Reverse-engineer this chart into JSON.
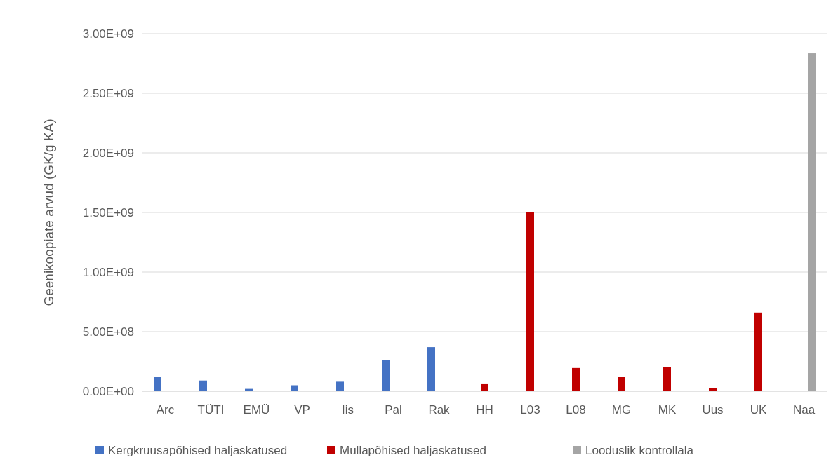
{
  "chart_data": {
    "type": "bar",
    "ylabel": "Geenikoopiate arvud (GK/g KA)",
    "categories": [
      "Arc",
      "TÜTI",
      "EMÜ",
      "VP",
      "Iis",
      "Pal",
      "Rak",
      "HH",
      "L03",
      "L08",
      "MG",
      "MK",
      "Uus",
      "UK",
      "Naa"
    ],
    "series": [
      {
        "name": "Kergkruusapõhised haljaskatused",
        "color": "#4472c4",
        "values": [
          120000000,
          90000000,
          20000000,
          50000000,
          80000000,
          260000000,
          370000000,
          null,
          null,
          null,
          null,
          null,
          null,
          null,
          null
        ]
      },
      {
        "name": "Mullapõhised haljaskatused",
        "color": "#c00000",
        "values": [
          null,
          null,
          null,
          null,
          null,
          null,
          null,
          65000000,
          1500000000,
          195000000,
          120000000,
          200000000,
          25000000,
          660000000,
          null
        ]
      },
      {
        "name": "Looduslik kontrollala",
        "color": "#a5a5a5",
        "values": [
          null,
          null,
          null,
          null,
          null,
          null,
          null,
          null,
          null,
          null,
          null,
          null,
          null,
          null,
          2835000000
        ]
      }
    ],
    "ylim": [
      0,
      3000000000
    ],
    "yticks": [
      {
        "value": 0,
        "label": "0.00E+00"
      },
      {
        "value": 500000000,
        "label": "5.00E+08"
      },
      {
        "value": 1000000000,
        "label": "1.00E+09"
      },
      {
        "value": 1500000000,
        "label": "1.50E+09"
      },
      {
        "value": 2000000000,
        "label": "2.00E+09"
      },
      {
        "value": 2500000000,
        "label": "2.50E+09"
      },
      {
        "value": 3000000000,
        "label": "3.00E+09"
      }
    ],
    "grid": "y",
    "legend": "bottom"
  }
}
